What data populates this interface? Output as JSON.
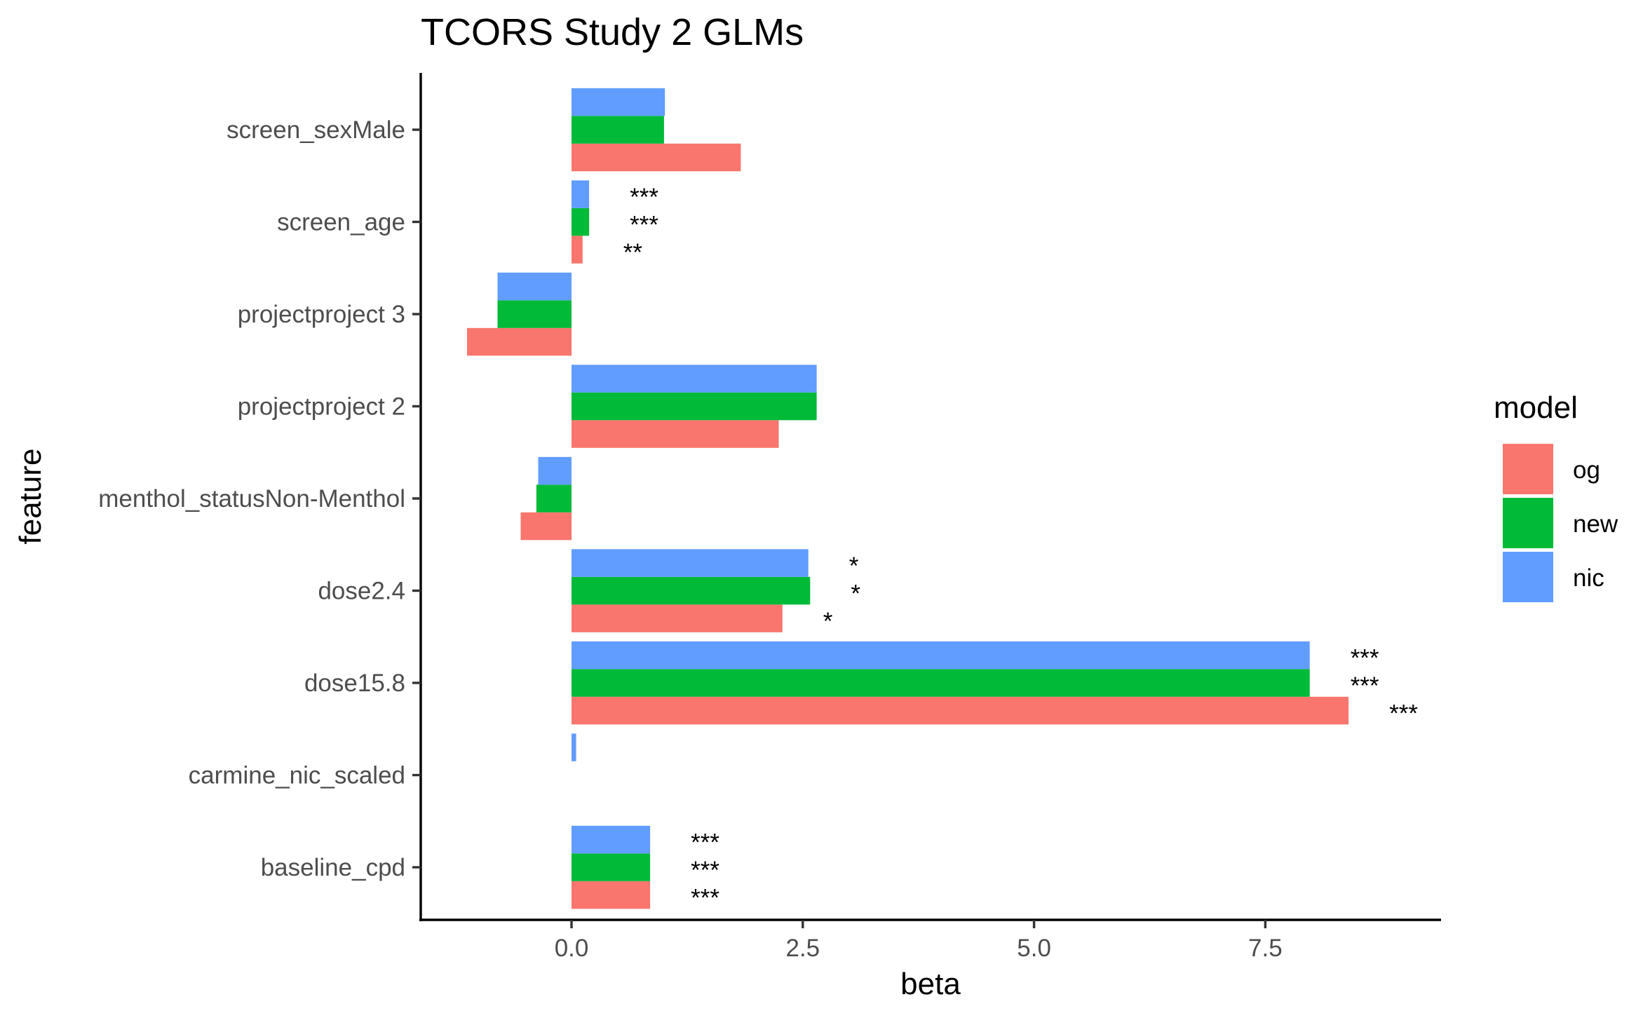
{
  "chart_data": {
    "type": "bar",
    "orientation": "horizontal",
    "title": "TCORS Study 2 GLMs",
    "xlabel": "beta",
    "ylabel": "feature",
    "xlim": [
      -1.63,
      9.4
    ],
    "x_ticks": [
      0.0,
      2.5,
      5.0,
      7.5
    ],
    "x_tick_labels": [
      "0.0",
      "2.5",
      "5.0",
      "7.5"
    ],
    "categories": [
      "screen_sexMale",
      "screen_age",
      "projectproject 3",
      "projectproject 2",
      "menthol_statusNon-Menthol",
      "dose2.4",
      "dose15.8",
      "carmine_nic_scaled",
      "baseline_cpd"
    ],
    "series": [
      {
        "name": "og",
        "color": "#F8766D",
        "values": [
          1.83,
          0.12,
          -1.13,
          2.24,
          -0.55,
          2.28,
          8.4,
          null,
          0.85
        ],
        "significance": [
          "",
          "**",
          "",
          "",
          "",
          "*",
          "***",
          "",
          "***"
        ]
      },
      {
        "name": "new",
        "color": "#00BA38",
        "values": [
          1.0,
          0.19,
          -0.8,
          2.65,
          -0.38,
          2.58,
          7.98,
          null,
          0.85
        ],
        "significance": [
          "",
          "***",
          "",
          "",
          "",
          "*",
          "***",
          "",
          "***"
        ]
      },
      {
        "name": "nic",
        "color": "#619CFF",
        "values": [
          1.01,
          0.19,
          -0.8,
          2.65,
          -0.36,
          2.56,
          7.98,
          0.05,
          0.85
        ],
        "significance": [
          "",
          "***",
          "",
          "",
          "",
          "*",
          "***",
          "",
          "***"
        ]
      }
    ],
    "legend": {
      "title": "model",
      "placement": "right",
      "entries": [
        "og",
        "new",
        "nic"
      ]
    },
    "grid": false
  }
}
